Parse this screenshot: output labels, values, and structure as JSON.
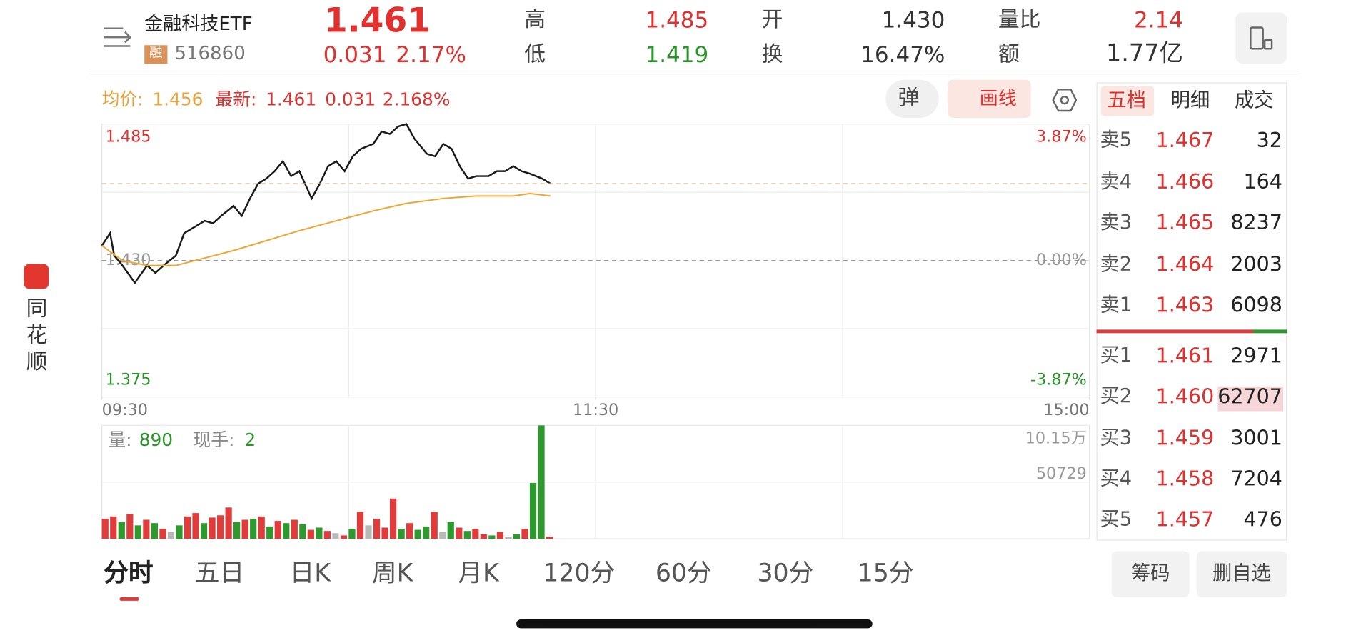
{
  "header": {
    "name": "金融科技ETF",
    "badge": "融",
    "code": "516860",
    "price": "1.461",
    "change": "0.031",
    "change_pct": "2.17%",
    "stats": [
      [
        "高",
        "1.485"
      ],
      [
        "低",
        "1.419"
      ],
      [
        "开",
        "1.430"
      ],
      [
        "换",
        "16.47%"
      ],
      [
        "量比",
        "2.14"
      ],
      [
        "额",
        "1.77亿"
      ]
    ]
  },
  "toolbar": {
    "avg_label": "均价:",
    "avg": "1.456",
    "latest_label": "最新:",
    "latest": "1.461",
    "latest_change": "0.031",
    "latest_pct": "2.168%",
    "buttons": [
      "弹",
      "画线"
    ]
  },
  "chart_data": [
    {
      "type": "line",
      "grid": true,
      "xlim": [
        0,
        240
      ],
      "xticks": [
        {
          "value": 0,
          "label": "09:30"
        },
        {
          "value": 120,
          "label": "11:30"
        },
        {
          "value": 240,
          "label": "15:00"
        }
      ],
      "ylim": [
        1.375,
        1.485
      ],
      "yticks": [
        1.485,
        {
          "value": 1.43,
          "label": "1.430"
        },
        1.375
      ],
      "y2lim": [
        -3.87,
        3.87
      ],
      "y2ticks": [
        {
          "value": 3.87,
          "label": "3.87%"
        },
        {
          "value": 0,
          "label": "0.00%"
        },
        {
          "value": -3.87,
          "label": "-3.87%"
        }
      ],
      "series": [
        {
          "color": "#1a1a1a",
          "x": [
            0,
            2,
            3,
            5,
            8,
            11,
            13,
            15,
            18,
            20,
            23,
            25,
            27,
            29,
            32,
            34,
            36,
            38,
            40,
            42,
            44,
            46,
            48,
            51,
            53,
            55,
            57,
            59,
            61,
            63,
            66,
            68,
            70,
            72,
            74,
            76,
            79,
            81,
            83,
            85,
            87,
            89,
            91,
            94,
            96,
            98,
            100,
            102,
            104,
            107,
            108,
            109
          ],
          "values": [
            1.436,
            1.441,
            1.432,
            1.428,
            1.421,
            1.428,
            1.425,
            1.428,
            1.432,
            1.441,
            1.444,
            1.446,
            1.445,
            1.448,
            1.452,
            1.448,
            1.455,
            1.461,
            1.463,
            1.466,
            1.47,
            1.464,
            1.466,
            1.455,
            1.461,
            1.468,
            1.47,
            1.466,
            1.472,
            1.475,
            1.477,
            1.482,
            1.481,
            1.484,
            1.485,
            1.479,
            1.473,
            1.472,
            1.477,
            1.475,
            1.468,
            1.463,
            1.464,
            1.464,
            1.466,
            1.466,
            1.468,
            1.466,
            1.465,
            1.463,
            1.462,
            1.461
          ]
        },
        {
          "color": "#f0a535",
          "x": [
            0,
            5,
            11,
            18,
            25,
            32,
            40,
            48,
            57,
            66,
            74,
            83,
            91,
            100,
            104,
            109
          ],
          "values": [
            1.436,
            1.43,
            1.428,
            1.428,
            1.431,
            1.434,
            1.438,
            1.442,
            1.446,
            1.45,
            1.453,
            1.455,
            1.456,
            1.456,
            1.457,
            1.456
          ]
        }
      ]
    },
    {
      "type": "bar",
      "volume_label": "量:",
      "volume": "890",
      "hand_label": "现手:",
      "hand": "2",
      "xlim": [
        0,
        240
      ],
      "ylim": [
        0,
        101500
      ],
      "yticks": [
        {
          "value": 101500,
          "label": "10.15万"
        },
        50729
      ],
      "x": [
        0,
        2,
        4,
        6,
        8,
        10,
        12,
        14,
        16,
        18,
        20,
        22,
        24,
        26,
        28,
        30,
        32,
        34,
        36,
        38,
        40,
        42,
        44,
        46,
        48,
        50,
        52,
        54,
        56,
        58,
        60,
        62,
        64,
        66,
        68,
        70,
        72,
        74,
        76,
        78,
        80,
        82,
        84,
        86,
        88,
        90,
        92,
        94,
        96,
        98,
        100,
        102,
        104,
        106,
        108
      ],
      "values": [
        18000,
        20000,
        15000,
        22000,
        12000,
        17000,
        14000,
        9000,
        6000,
        12000,
        20000,
        23000,
        14000,
        19000,
        21000,
        28000,
        15000,
        17000,
        18000,
        20000,
        11000,
        16000,
        14000,
        17000,
        13000,
        8000,
        10000,
        7000,
        5000,
        3000,
        9000,
        24000,
        12000,
        18000,
        10000,
        36000,
        9000,
        14000,
        8000,
        11000,
        24000,
        6000,
        15000,
        10000,
        7000,
        9000,
        4000,
        3000,
        6000,
        2000,
        4000,
        9000,
        50000,
        101500,
        2000
      ],
      "colors": [
        "#e03c3c",
        "#e03c3c",
        "#2e9a2e",
        "#e03c3c",
        "#2e9a2e",
        "#e03c3c",
        "#2e9a2e",
        "#e03c3c",
        "#b8b8b8",
        "#2e9a2e",
        "#e03c3c",
        "#e03c3c",
        "#2e9a2e",
        "#e03c3c",
        "#e03c3c",
        "#e03c3c",
        "#2e9a2e",
        "#e03c3c",
        "#2e9a2e",
        "#e03c3c",
        "#2e9a2e",
        "#e03c3c",
        "#2e9a2e",
        "#e03c3c",
        "#2e9a2e",
        "#e03c3c",
        "#2e9a2e",
        "#e03c3c",
        "#b8b8b8",
        "#e03c3c",
        "#2e9a2e",
        "#e03c3c",
        "#b8b8b8",
        "#e03c3c",
        "#e03c3c",
        "#e03c3c",
        "#2e9a2e",
        "#e03c3c",
        "#2e9a2e",
        "#2e9a2e",
        "#e03c3c",
        "#b8b8b8",
        "#2e9a2e",
        "#e03c3c",
        "#2e9a2e",
        "#e03c3c",
        "#e03c3c",
        "#2e9a2e",
        "#e03c3c",
        "#b8b8b8",
        "#2e9a2e",
        "#e03c3c",
        "#2e9a2e",
        "#2e9a2e",
        "#e03c3c"
      ]
    }
  ],
  "order_book": {
    "tabs": [
      "五档",
      "明细",
      "成交"
    ],
    "asks": [
      [
        "卖5",
        "1.467",
        "32"
      ],
      [
        "卖4",
        "1.466",
        "164"
      ],
      [
        "卖3",
        "1.465",
        "8237"
      ],
      [
        "卖2",
        "1.464",
        "2003"
      ],
      [
        "卖1",
        "1.463",
        "6098"
      ]
    ],
    "bids": [
      [
        "买1",
        "1.461",
        "2971"
      ],
      [
        "买2",
        "1.460",
        "62707"
      ],
      [
        "买3",
        "1.459",
        "3001"
      ],
      [
        "买4",
        "1.458",
        "7204"
      ],
      [
        "买5",
        "1.457",
        "476"
      ]
    ]
  },
  "bottom": {
    "periods": [
      "分时",
      "五日",
      "日K",
      "周K",
      "月K",
      "120分",
      "60分",
      "30分",
      "15分"
    ],
    "buttons": [
      "筹码",
      "删自选"
    ]
  },
  "sidebar": {
    "brand": "同花顺"
  }
}
